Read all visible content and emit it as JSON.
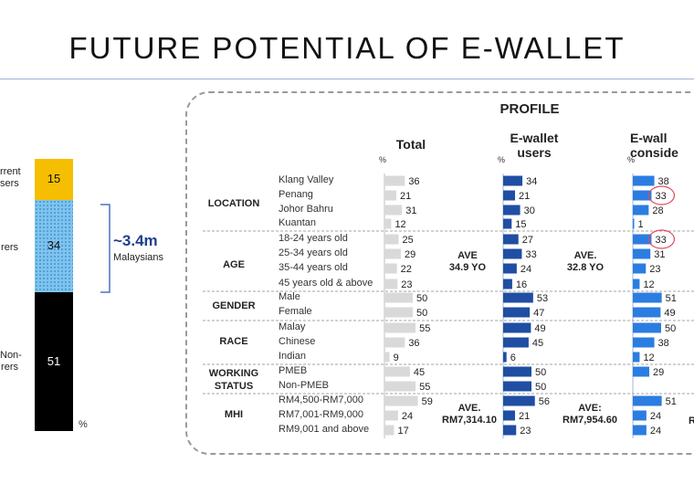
{
  "title": "FUTURE POTENTIAL OF E-WALLET",
  "stack": {
    "segments": [
      {
        "label": "rrent\nsers",
        "value": 15,
        "color": "#f6be00"
      },
      {
        "label": "rers",
        "value": 34,
        "color": "#7fc3ee"
      },
      {
        "label": "Non-\nrers",
        "value": 51,
        "color": "#000000"
      }
    ],
    "unit": "%",
    "bracket_value": "~3.4m",
    "bracket_label": "Malaysians"
  },
  "profile": {
    "title": "PROFILE",
    "unit": "%",
    "columns": [
      "Total",
      "E-wallet\nusers",
      "E-wall\nconside"
    ],
    "categories": [
      "LOCATION",
      "AGE",
      "GENDER",
      "RACE",
      "WORKING\nSTATUS",
      "MHI"
    ],
    "aves": [
      "AVE\n34.9 YO",
      "AVE.\n32.8 YO",
      "AVE.\nRM7,314.10",
      "AVE:\nRM7,954.60",
      "R"
    ]
  },
  "chart_data": {
    "type": "bar",
    "categories": [
      "Klang Valley",
      "Penang",
      "Johor Bahru",
      "Kuantan",
      "18-24 years old",
      "25-34 years old",
      "35-44 years old",
      "45 years old & above",
      "Male",
      "Female",
      "Malay",
      "Chinese",
      "Indian",
      "PMEB",
      "Non-PMEB",
      "RM4,500-RM7,000",
      "RM7,001-RM9,000",
      "RM9,001 and above"
    ],
    "series": [
      {
        "name": "Total",
        "values": [
          36,
          21,
          31,
          12,
          25,
          29,
          22,
          23,
          50,
          50,
          55,
          36,
          9,
          45,
          55,
          59,
          24,
          17
        ]
      },
      {
        "name": "E-wallet\nusers",
        "values": [
          34,
          21,
          30,
          15,
          27,
          33,
          24,
          16,
          53,
          47,
          49,
          45,
          6,
          50,
          50,
          56,
          21,
          23
        ]
      },
      {
        "name": "E-wall\nconside",
        "values": [
          38,
          33,
          28,
          1,
          33,
          31,
          23,
          12,
          51,
          49,
          50,
          38,
          12,
          29,
          "",
          51,
          24,
          24
        ]
      }
    ],
    "value_labels": [
      [
        "36",
        "21",
        "31",
        "12",
        "25",
        "29",
        "22",
        "23",
        "50",
        "50",
        "55",
        "36",
        "9",
        "45",
        "55",
        "59",
        "24",
        "17"
      ],
      [
        "34",
        "21",
        "30",
        "15",
        "27",
        "33",
        "24",
        "16",
        "53",
        "47",
        "49",
        "45",
        "6",
        "50",
        "50",
        "56",
        "21",
        "23"
      ],
      [
        "38",
        "33",
        "28",
        "1",
        "33",
        "31",
        "23",
        "12",
        "51",
        "49",
        "50",
        "38",
        "12",
        "29",
        "",
        "51",
        "24",
        "24"
      ]
    ],
    "circled": [
      [
        2,
        1
      ],
      [
        2,
        4
      ]
    ]
  }
}
